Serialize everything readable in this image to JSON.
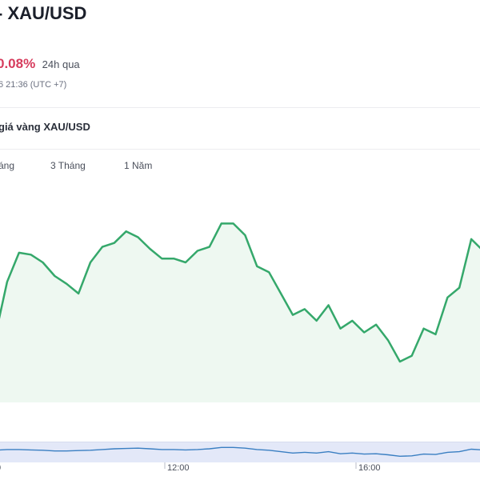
{
  "header": {
    "title": "- XAU/USD",
    "change_percent": "0.08%",
    "period": "24h qua",
    "timestamp": "6 21:36 (UTC +7)"
  },
  "section": {
    "title": "giá vàng XAU/USD"
  },
  "tabs": [
    {
      "label": "áng"
    },
    {
      "label": "3 Tháng"
    },
    {
      "label": "1 Năm"
    }
  ],
  "colors": {
    "line": "#35a86b",
    "fill": "#eef8f1",
    "change": "#d63b5c",
    "navigator_bg": "#e3e8f8",
    "navigator_line": "#3a7fc2"
  },
  "chart_data": {
    "type": "area",
    "title": "",
    "xlabel": "",
    "ylabel": "",
    "ylim": [
      0,
      100
    ],
    "values": [
      34,
      62,
      77,
      76,
      72,
      65,
      61,
      56,
      72,
      80,
      82,
      88,
      85,
      79,
      74,
      74,
      72,
      78,
      80,
      92,
      92,
      86,
      70,
      67,
      56,
      45,
      48,
      42,
      50,
      38,
      42,
      36,
      40,
      32,
      21,
      24,
      38,
      35,
      54,
      59,
      84,
      78
    ],
    "navigator": {
      "ticks": [
        "12:00",
        "16:00"
      ],
      "values": [
        60,
        62,
        62,
        61,
        60,
        58,
        58,
        59,
        60,
        62,
        64,
        65,
        66,
        64,
        62,
        62,
        61,
        62,
        64,
        68,
        68,
        66,
        62,
        60,
        56,
        52,
        54,
        52,
        56,
        50,
        52,
        49,
        50,
        47,
        43,
        44,
        49,
        48,
        54,
        56,
        63,
        61
      ]
    }
  }
}
